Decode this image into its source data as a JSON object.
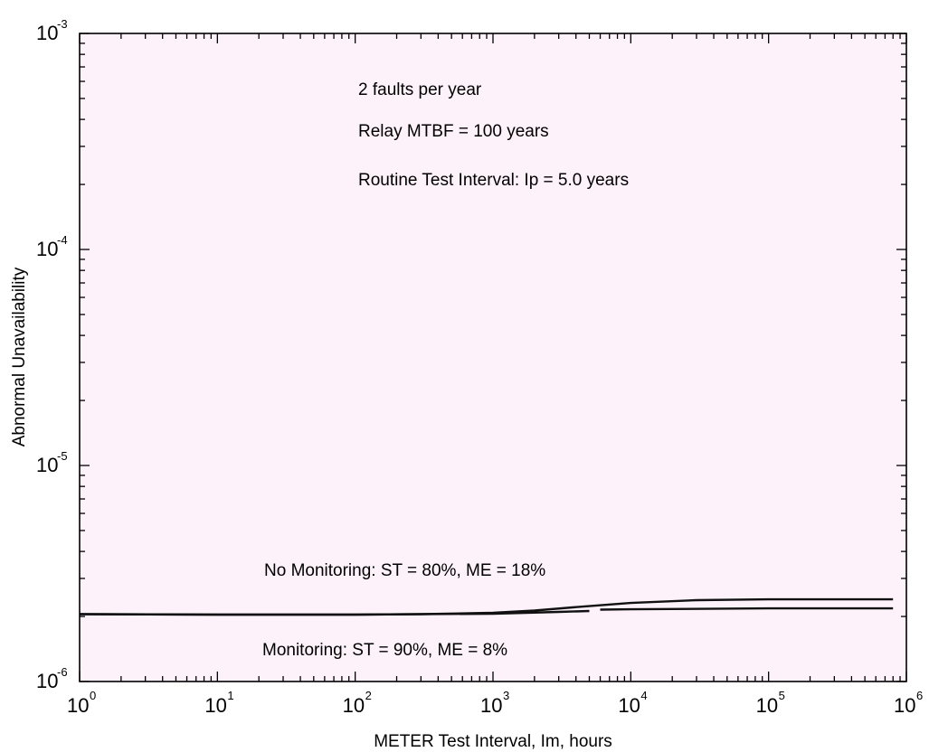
{
  "chart_data": {
    "type": "line",
    "title": "",
    "xlabel": "METER Test Interval, Im, hours",
    "ylabel": "Abnormal Unavailability",
    "xscale": "log",
    "yscale": "log",
    "xlim": [
      1,
      1000000
    ],
    "ylim": [
      1e-06,
      0.001
    ],
    "background": "#fdf1fa",
    "line_color": "#111111",
    "grid": false,
    "x_ticks": [
      {
        "base": "10",
        "exp": "0",
        "value": 1
      },
      {
        "base": "10",
        "exp": "1",
        "value": 10
      },
      {
        "base": "10",
        "exp": "2",
        "value": 100
      },
      {
        "base": "10",
        "exp": "3",
        "value": 1000
      },
      {
        "base": "10",
        "exp": "4",
        "value": 10000
      },
      {
        "base": "10",
        "exp": "5",
        "value": 100000
      },
      {
        "base": "10",
        "exp": "6",
        "value": 1000000
      }
    ],
    "y_ticks": [
      {
        "base": "10",
        "exp": "-6",
        "value": 1e-06
      },
      {
        "base": "10",
        "exp": "-5",
        "value": 1e-05
      },
      {
        "base": "10",
        "exp": "-4",
        "value": 0.0001
      },
      {
        "base": "10",
        "exp": "-3",
        "value": 0.001
      }
    ],
    "annotations": [
      "2 faults per year",
      "Relay MTBF = 100 years",
      "Routine Test Interval: Ip = 5.0 years"
    ],
    "series": [
      {
        "label": "No Monitoring: ST = 80%, ME = 18%",
        "x": [
          1,
          10,
          100,
          300,
          1000,
          2000,
          4000,
          10000,
          30000,
          100000,
          300000,
          800000
        ],
        "y": [
          2.05e-06,
          2.04e-06,
          2.04e-06,
          2.05e-06,
          2.08e-06,
          2.13e-06,
          2.21e-06,
          2.31e-06,
          2.38e-06,
          2.4e-06,
          2.4e-06,
          2.4e-06
        ]
      },
      {
        "label": "Monitoring: ST = 90%, ME = 8%",
        "x": [
          1,
          10,
          100,
          1000,
          3000,
          5000,
          6000,
          10000,
          100000,
          800000
        ],
        "y": [
          2.05e-06,
          2.04e-06,
          2.04e-06,
          2.06e-06,
          2.1e-06,
          2.12e-06,
          2.15e-06,
          2.16e-06,
          2.18e-06,
          2.18e-06
        ],
        "gap": [
          5000,
          6000
        ]
      }
    ]
  }
}
